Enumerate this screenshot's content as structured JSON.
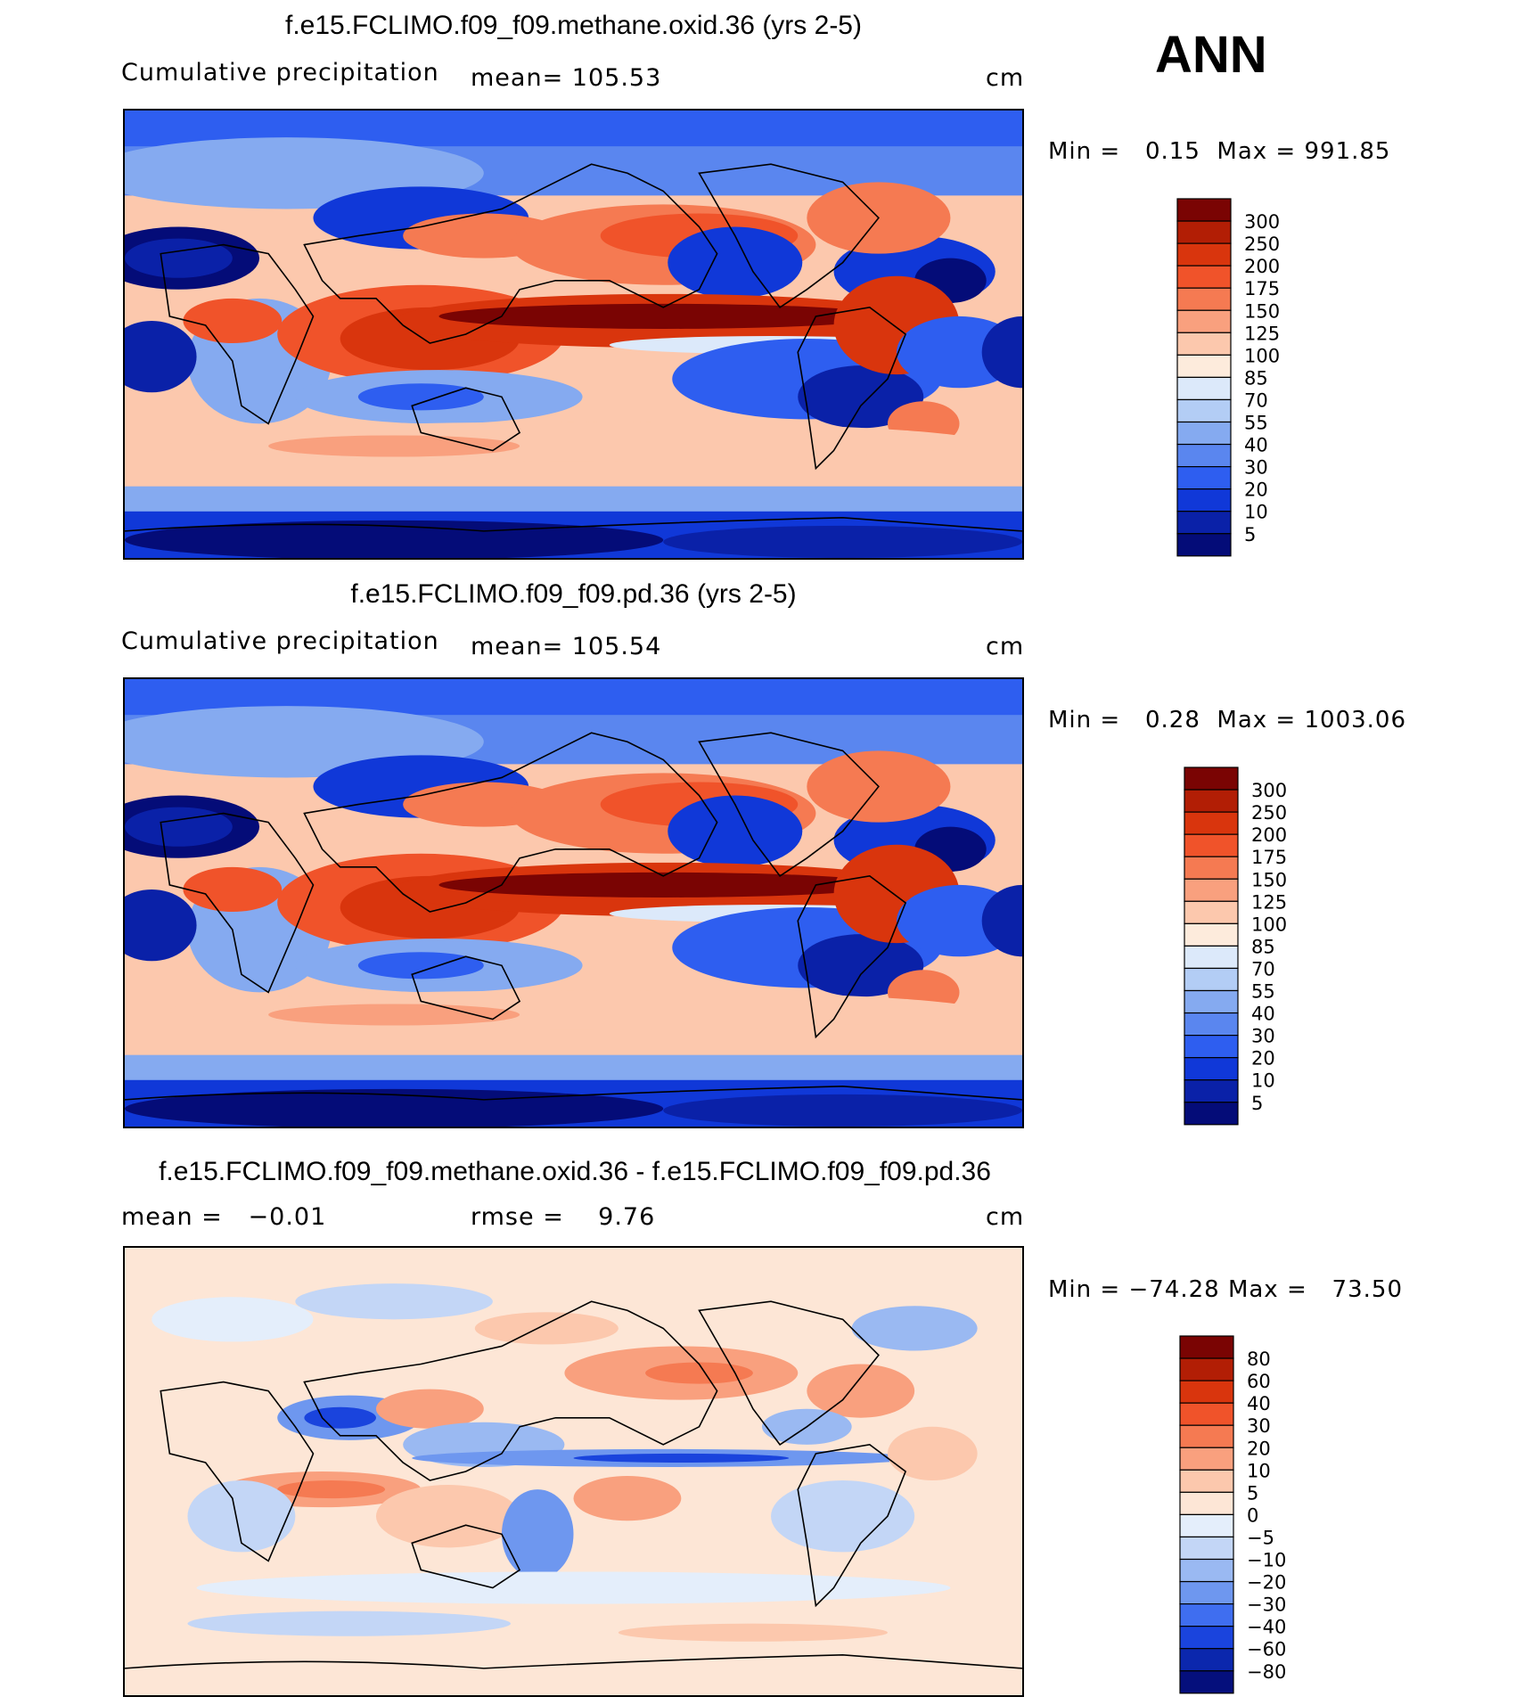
{
  "season": "ANN",
  "panels": [
    {
      "title": "f.e15.FCLIMO.f09_f09.methane.oxid.36 (yrs 2-5)",
      "variable": "Cumulative precipitation",
      "stat1_label": "mean=",
      "stat1_value": "105.53",
      "stat2_label": "",
      "stat2_value": "",
      "units": "cm",
      "min_label": "Min =",
      "min_value": "0.15",
      "max_label": "Max =",
      "max_value": "991.85",
      "levels": [
        "300",
        "250",
        "200",
        "175",
        "150",
        "125",
        "100",
        "85",
        "70",
        "55",
        "40",
        "30",
        "20",
        "10",
        "5"
      ],
      "colors": [
        "#7a0403",
        "#b21e05",
        "#d9350d",
        "#f0532a",
        "#f57a52",
        "#f9a07e",
        "#fcc8ad",
        "#fdebdc",
        "#dce9fa",
        "#b3cdf5",
        "#85aaf0",
        "#5a86ef",
        "#2e5ef0",
        "#1038d8",
        "#0a21a8",
        "#040c78"
      ],
      "chart_data": {
        "type": "heatmap",
        "field": "annual cumulative precipitation (cm), global lat-lon map",
        "mean": 105.53,
        "min": 0.15,
        "max": 991.85,
        "contour_levels": [
          5,
          10,
          20,
          30,
          40,
          55,
          70,
          85,
          100,
          125,
          150,
          175,
          200,
          250,
          300
        ]
      }
    },
    {
      "title": "f.e15.FCLIMO.f09_f09.pd.36 (yrs 2-5)",
      "variable": "Cumulative precipitation",
      "stat1_label": "mean=",
      "stat1_value": "105.54",
      "stat2_label": "",
      "stat2_value": "",
      "units": "cm",
      "min_label": "Min =",
      "min_value": "0.28",
      "max_label": "Max =",
      "max_value": "1003.06",
      "levels": [
        "300",
        "250",
        "200",
        "175",
        "150",
        "125",
        "100",
        "85",
        "70",
        "55",
        "40",
        "30",
        "20",
        "10",
        "5"
      ],
      "colors": [
        "#7a0403",
        "#b21e05",
        "#d9350d",
        "#f0532a",
        "#f57a52",
        "#f9a07e",
        "#fcc8ad",
        "#fdebdc",
        "#dce9fa",
        "#b3cdf5",
        "#85aaf0",
        "#5a86ef",
        "#2e5ef0",
        "#1038d8",
        "#0a21a8",
        "#040c78"
      ],
      "chart_data": {
        "type": "heatmap",
        "field": "annual cumulative precipitation (cm), global lat-lon map",
        "mean": 105.54,
        "min": 0.28,
        "max": 1003.06,
        "contour_levels": [
          5,
          10,
          20,
          30,
          40,
          55,
          70,
          85,
          100,
          125,
          150,
          175,
          200,
          250,
          300
        ]
      }
    },
    {
      "title": "f.e15.FCLIMO.f09_f09.methane.oxid.36 - f.e15.FCLIMO.f09_f09.pd.36",
      "variable": "",
      "stat1_label": "mean =",
      "stat1_value": "−0.01",
      "stat2_label": "rmse =",
      "stat2_value": "9.76",
      "units": "cm",
      "min_label": "Min =",
      "min_value": "−74.28",
      "max_label": "Max =",
      "max_value": "73.50",
      "levels": [
        "80",
        "60",
        "40",
        "30",
        "20",
        "10",
        "5",
        "0",
        "−5",
        "−10",
        "−20",
        "−30",
        "−40",
        "−60",
        "−80"
      ],
      "colors": [
        "#7a0403",
        "#b21e05",
        "#d9350d",
        "#f0532a",
        "#f57a52",
        "#f9a07e",
        "#fcc8ad",
        "#fde6d6",
        "#e4eefb",
        "#c3d6f6",
        "#9ab9f2",
        "#6e97ef",
        "#3f6ef0",
        "#1a44dd",
        "#0b27ad",
        "#050f7c"
      ],
      "chart_data": {
        "type": "heatmap",
        "field": "difference of annual cumulative precipitation (cm)",
        "mean": -0.01,
        "rmse": 9.76,
        "min": -74.28,
        "max": 73.5,
        "contour_levels": [
          -80,
          -60,
          -40,
          -30,
          -20,
          -10,
          -5,
          0,
          5,
          10,
          20,
          30,
          40,
          60,
          80
        ]
      }
    }
  ]
}
